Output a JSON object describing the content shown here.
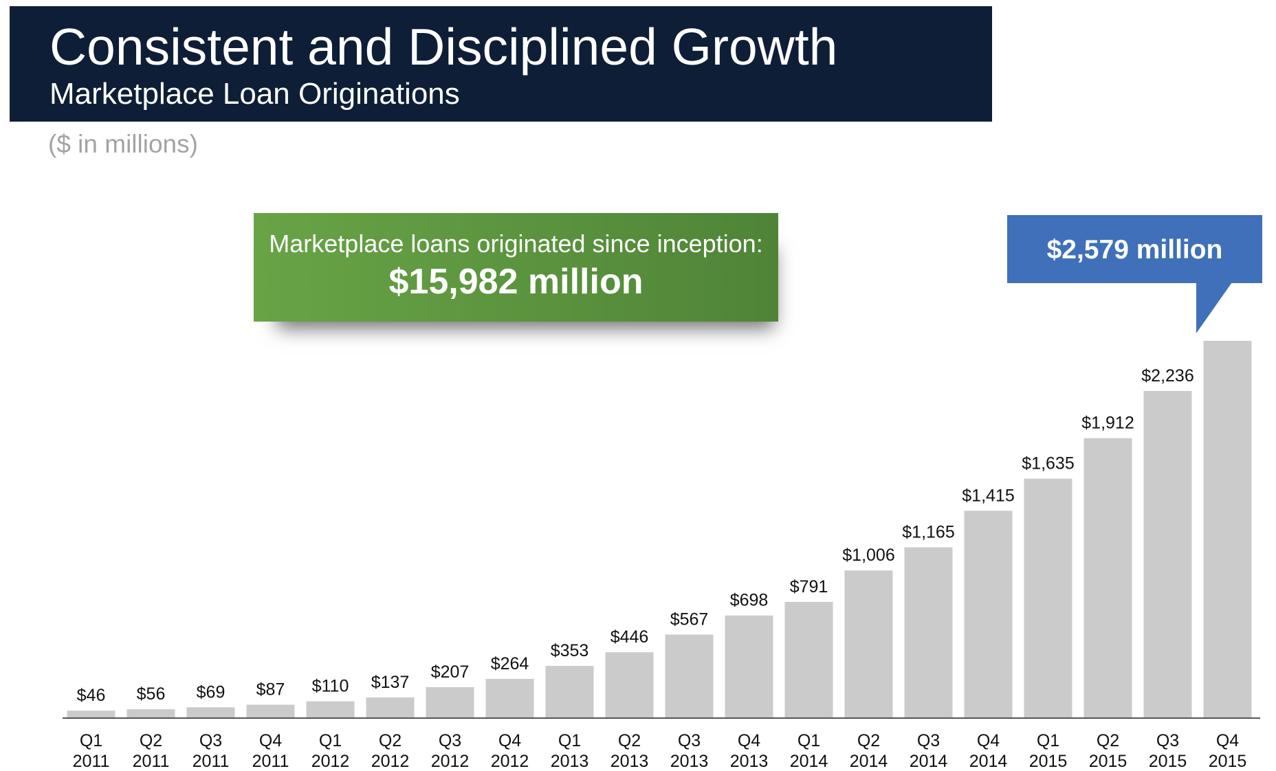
{
  "header": {
    "title": "Consistent and Disciplined Growth",
    "subtitle": "Marketplace Loan Originations"
  },
  "units_note": "($ in millions)",
  "callouts": {
    "inception_label": "Marketplace loans originated since inception:",
    "inception_value": "$15,982 million",
    "latest_value": "$2,579 million"
  },
  "colors": {
    "banner": "#0e1e36",
    "bar": "#cbcbcb",
    "green_callout": "#5b9640",
    "blue_callout": "#3f70b9",
    "units_text": "#a3a3a3"
  },
  "chart_data": {
    "type": "bar",
    "title": "Marketplace Loan Originations",
    "ylabel": "",
    "xlabel": "",
    "ylim": [
      0,
      2579
    ],
    "grid": false,
    "categories": [
      [
        "Q1",
        "2011"
      ],
      [
        "Q2",
        "2011"
      ],
      [
        "Q3",
        "2011"
      ],
      [
        "Q4",
        "2011"
      ],
      [
        "Q1",
        "2012"
      ],
      [
        "Q2",
        "2012"
      ],
      [
        "Q3",
        "2012"
      ],
      [
        "Q4",
        "2012"
      ],
      [
        "Q1",
        "2013"
      ],
      [
        "Q2",
        "2013"
      ],
      [
        "Q3",
        "2013"
      ],
      [
        "Q4",
        "2013"
      ],
      [
        "Q1",
        "2014"
      ],
      [
        "Q2",
        "2014"
      ],
      [
        "Q3",
        "2014"
      ],
      [
        "Q4",
        "2014"
      ],
      [
        "Q1",
        "2015"
      ],
      [
        "Q2",
        "2015"
      ],
      [
        "Q3",
        "2015"
      ],
      [
        "Q4",
        "2015"
      ]
    ],
    "values": [
      46,
      56,
      69,
      87,
      110,
      137,
      207,
      264,
      353,
      446,
      567,
      698,
      791,
      1006,
      1165,
      1415,
      1635,
      1912,
      2236,
      2579
    ],
    "data_labels": [
      "$46",
      "$56",
      "$69",
      "$87",
      "$110",
      "$137",
      "$207",
      "$264",
      "$353",
      "$446",
      "$567",
      "$698",
      "$791",
      "$1,006",
      "$1,165",
      "$1,415",
      "$1,635",
      "$1,912",
      "$2,236",
      ""
    ]
  }
}
